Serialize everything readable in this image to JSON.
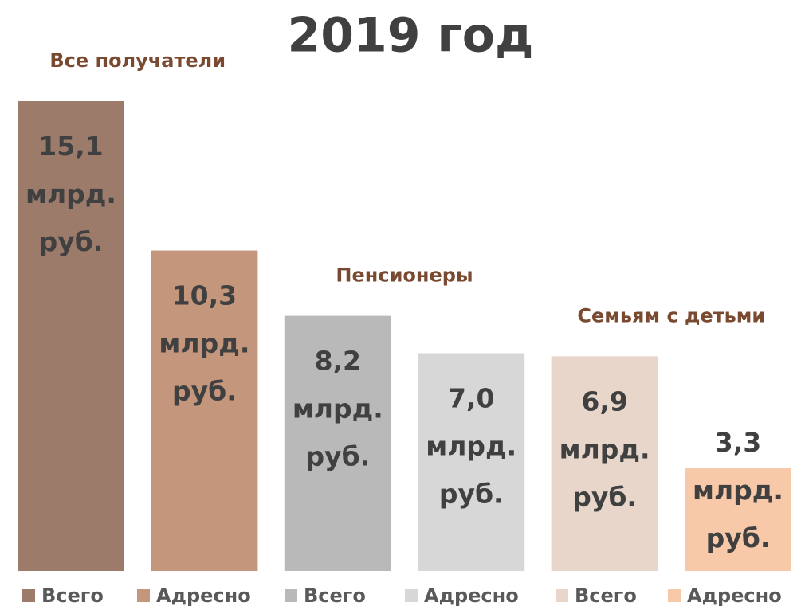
{
  "chart_data": {
    "type": "bar",
    "title": "2019 год",
    "groups": [
      "Все получатели",
      "Пенсионеры",
      "Семьям с детьми"
    ],
    "series": [
      {
        "name": "Всего",
        "color": "#9c7b6b",
        "values": [
          15.1
        ],
        "value_labels": [
          "15,1 млрд. руб."
        ]
      },
      {
        "name": "Адресно",
        "color": "#c4967c",
        "values": [
          10.3
        ],
        "value_labels": [
          "10,3 млрд. руб."
        ]
      },
      {
        "name": "Всего",
        "color": "#b9b9b9",
        "values": [
          8.2
        ],
        "value_labels": [
          "8,2 млрд. руб."
        ]
      },
      {
        "name": "Адресно",
        "color": "#d7d7d7",
        "values": [
          7.0
        ],
        "value_labels": [
          "7,0 млрд. руб."
        ]
      },
      {
        "name": "Всего",
        "color": "#e8d6ca",
        "values": [
          6.9
        ],
        "value_labels": [
          "6,9 млрд. руб."
        ]
      },
      {
        "name": "Адресно",
        "color": "#f8c9a9",
        "values": [
          3.3
        ],
        "value_labels": [
          "3,3 млрд. руб."
        ]
      }
    ]
  }
}
